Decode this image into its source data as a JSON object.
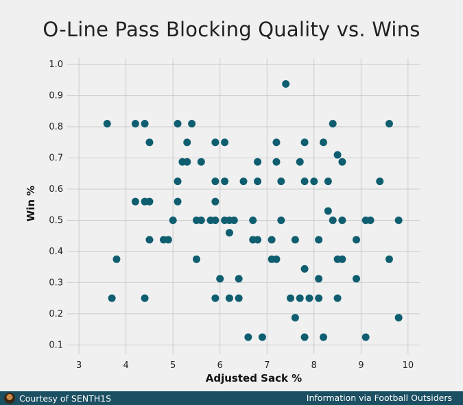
{
  "title": "O-Line Pass Blocking Quality vs. Wins",
  "footer": {
    "left_text": "Courtesy of SENTH1S",
    "right_text": "Information via Football Outsiders"
  },
  "colors": {
    "background": "#f0f0f0",
    "grid": "#cbcbcb",
    "point": "#0f5e70",
    "footer_bg": "#1b4f62"
  },
  "chart_data": {
    "type": "scatter",
    "title": "O-Line Pass Blocking Quality vs. Wins",
    "xlabel": "Adjusted Sack %",
    "ylabel": "Win %",
    "xlim": [
      2.75,
      10.25
    ],
    "ylim": [
      0.07,
      1.02
    ],
    "xticks": [
      3,
      4,
      5,
      6,
      7,
      8,
      9,
      10
    ],
    "yticks": [
      0.1,
      0.2,
      0.3,
      0.4,
      0.5,
      0.6,
      0.7,
      0.8,
      0.9,
      1.0
    ],
    "grid": true,
    "points": [
      [
        3.6,
        0.81
      ],
      [
        3.7,
        0.25
      ],
      [
        3.8,
        0.375
      ],
      [
        4.2,
        0.81
      ],
      [
        4.2,
        0.56
      ],
      [
        4.4,
        0.81
      ],
      [
        4.4,
        0.56
      ],
      [
        4.4,
        0.25
      ],
      [
        4.5,
        0.75
      ],
      [
        4.5,
        0.56
      ],
      [
        4.5,
        0.4375
      ],
      [
        4.8,
        0.4375
      ],
      [
        4.9,
        0.4375
      ],
      [
        5.0,
        0.5
      ],
      [
        5.1,
        0.81
      ],
      [
        5.1,
        0.625
      ],
      [
        5.1,
        0.56
      ],
      [
        5.2,
        0.6875
      ],
      [
        5.3,
        0.6875
      ],
      [
        5.3,
        0.75
      ],
      [
        5.4,
        0.81
      ],
      [
        5.5,
        0.5
      ],
      [
        5.5,
        0.375
      ],
      [
        5.6,
        0.6875
      ],
      [
        5.6,
        0.5
      ],
      [
        5.8,
        0.5
      ],
      [
        5.9,
        0.75
      ],
      [
        5.9,
        0.625
      ],
      [
        5.9,
        0.56
      ],
      [
        5.9,
        0.5
      ],
      [
        5.9,
        0.25
      ],
      [
        6.0,
        0.3125
      ],
      [
        6.1,
        0.75
      ],
      [
        6.1,
        0.625
      ],
      [
        6.1,
        0.5
      ],
      [
        6.2,
        0.5
      ],
      [
        6.2,
        0.46
      ],
      [
        6.2,
        0.25
      ],
      [
        6.3,
        0.5
      ],
      [
        6.4,
        0.3125
      ],
      [
        6.4,
        0.25
      ],
      [
        6.5,
        0.625
      ],
      [
        6.6,
        0.125
      ],
      [
        6.7,
        0.5
      ],
      [
        6.7,
        0.4375
      ],
      [
        6.8,
        0.6875
      ],
      [
        6.8,
        0.625
      ],
      [
        6.8,
        0.4375
      ],
      [
        6.9,
        0.125
      ],
      [
        7.1,
        0.4375
      ],
      [
        7.1,
        0.375
      ],
      [
        7.2,
        0.75
      ],
      [
        7.2,
        0.6875
      ],
      [
        7.2,
        0.375
      ],
      [
        7.3,
        0.625
      ],
      [
        7.3,
        0.5
      ],
      [
        7.4,
        0.9375
      ],
      [
        7.5,
        0.25
      ],
      [
        7.6,
        0.4375
      ],
      [
        7.6,
        0.1875
      ],
      [
        7.7,
        0.6875
      ],
      [
        7.7,
        0.25
      ],
      [
        7.8,
        0.75
      ],
      [
        7.8,
        0.625
      ],
      [
        7.8,
        0.344
      ],
      [
        7.8,
        0.125
      ],
      [
        7.9,
        0.25
      ],
      [
        8.0,
        0.625
      ],
      [
        8.1,
        0.4375
      ],
      [
        8.1,
        0.3125
      ],
      [
        8.1,
        0.25
      ],
      [
        8.2,
        0.75
      ],
      [
        8.2,
        0.125
      ],
      [
        8.3,
        0.625
      ],
      [
        8.3,
        0.53
      ],
      [
        8.4,
        0.81
      ],
      [
        8.4,
        0.5
      ],
      [
        8.5,
        0.71
      ],
      [
        8.5,
        0.375
      ],
      [
        8.5,
        0.25
      ],
      [
        8.6,
        0.6875
      ],
      [
        8.6,
        0.5
      ],
      [
        8.6,
        0.375
      ],
      [
        8.9,
        0.4375
      ],
      [
        8.9,
        0.3125
      ],
      [
        9.1,
        0.5
      ],
      [
        9.1,
        0.125
      ],
      [
        9.2,
        0.5
      ],
      [
        9.4,
        0.625
      ],
      [
        9.6,
        0.81
      ],
      [
        9.6,
        0.375
      ],
      [
        9.8,
        0.5
      ],
      [
        9.8,
        0.1875
      ]
    ]
  }
}
